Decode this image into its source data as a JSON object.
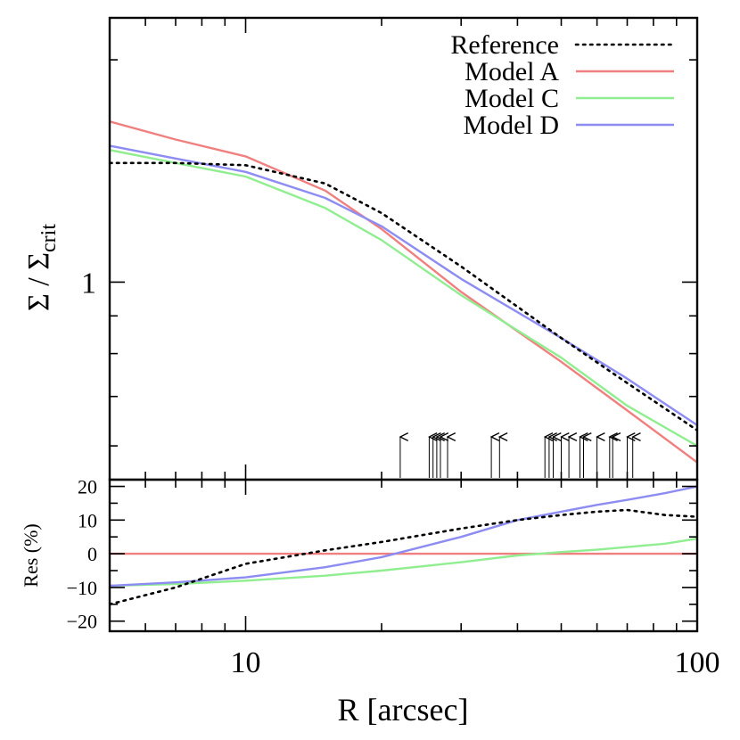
{
  "chart_data": {
    "type": "line",
    "xscale": "log",
    "x_range": [
      5,
      100
    ],
    "x_tick_labels": [
      "10",
      "100"
    ],
    "xlabel": "R [arcsec]",
    "legend_position": "top-right",
    "colors": {
      "Reference": "#000000",
      "Model A": "#f08080",
      "Model C": "#90ee90",
      "Model D": "#8c8cf2",
      "arrow": "#000000"
    },
    "top_panel": {
      "yscale": "log",
      "y_range": [
        0.54,
        2.28
      ],
      "ylabel": "Σ / Σ",
      "ylabel_subscript": "crit",
      "y_tick_labels": [
        "1"
      ],
      "x": [
        5,
        7,
        10,
        15,
        20,
        30,
        50,
        70,
        100
      ],
      "series": [
        {
          "name": "Reference",
          "style": "dotted",
          "values": [
            1.45,
            1.45,
            1.44,
            1.36,
            1.24,
            1.05,
            0.84,
            0.73,
            0.63
          ]
        },
        {
          "name": "Model A",
          "style": "solid",
          "values": [
            1.65,
            1.56,
            1.48,
            1.33,
            1.18,
            0.97,
            0.78,
            0.67,
            0.57
          ]
        },
        {
          "name": "Model C",
          "style": "solid",
          "values": [
            1.51,
            1.45,
            1.39,
            1.26,
            1.14,
            0.96,
            0.79,
            0.68,
            0.6
          ]
        },
        {
          "name": "Model D",
          "style": "solid",
          "values": [
            1.53,
            1.47,
            1.41,
            1.3,
            1.19,
            1.01,
            0.84,
            0.74,
            0.64
          ]
        }
      ],
      "arrow_positions": [
        22,
        25.5,
        26,
        26.5,
        27,
        28,
        35,
        36.5,
        46,
        47,
        48,
        50,
        52,
        55,
        56,
        60,
        64,
        65,
        70,
        72
      ]
    },
    "bottom_panel": {
      "ylabel": "Res (%)",
      "y_range": [
        -23,
        22
      ],
      "y_tick_labels": [
        "20",
        "10",
        "0",
        "−10",
        "−20"
      ],
      "x": [
        5,
        7,
        10,
        15,
        20,
        30,
        40,
        50,
        60,
        70,
        85,
        100
      ],
      "series": [
        {
          "name": "Reference",
          "style": "dotted",
          "values": [
            -15,
            -10,
            -3,
            1,
            3.5,
            7.5,
            10,
            11.5,
            12.5,
            13,
            11.5,
            11
          ]
        },
        {
          "name": "Model A",
          "style": "solid",
          "values": [
            0,
            0,
            0,
            0,
            0,
            0,
            0,
            0,
            0,
            0,
            0,
            0
          ]
        },
        {
          "name": "Model C",
          "style": "solid",
          "values": [
            -9.5,
            -9,
            -8,
            -6.5,
            -5,
            -2.5,
            -0.5,
            0.5,
            1.2,
            2,
            3,
            4.5
          ]
        },
        {
          "name": "Model D",
          "style": "solid",
          "values": [
            -9.5,
            -8.5,
            -7,
            -4,
            -1,
            5,
            10,
            12.5,
            14.5,
            16,
            18,
            20
          ]
        }
      ]
    }
  }
}
